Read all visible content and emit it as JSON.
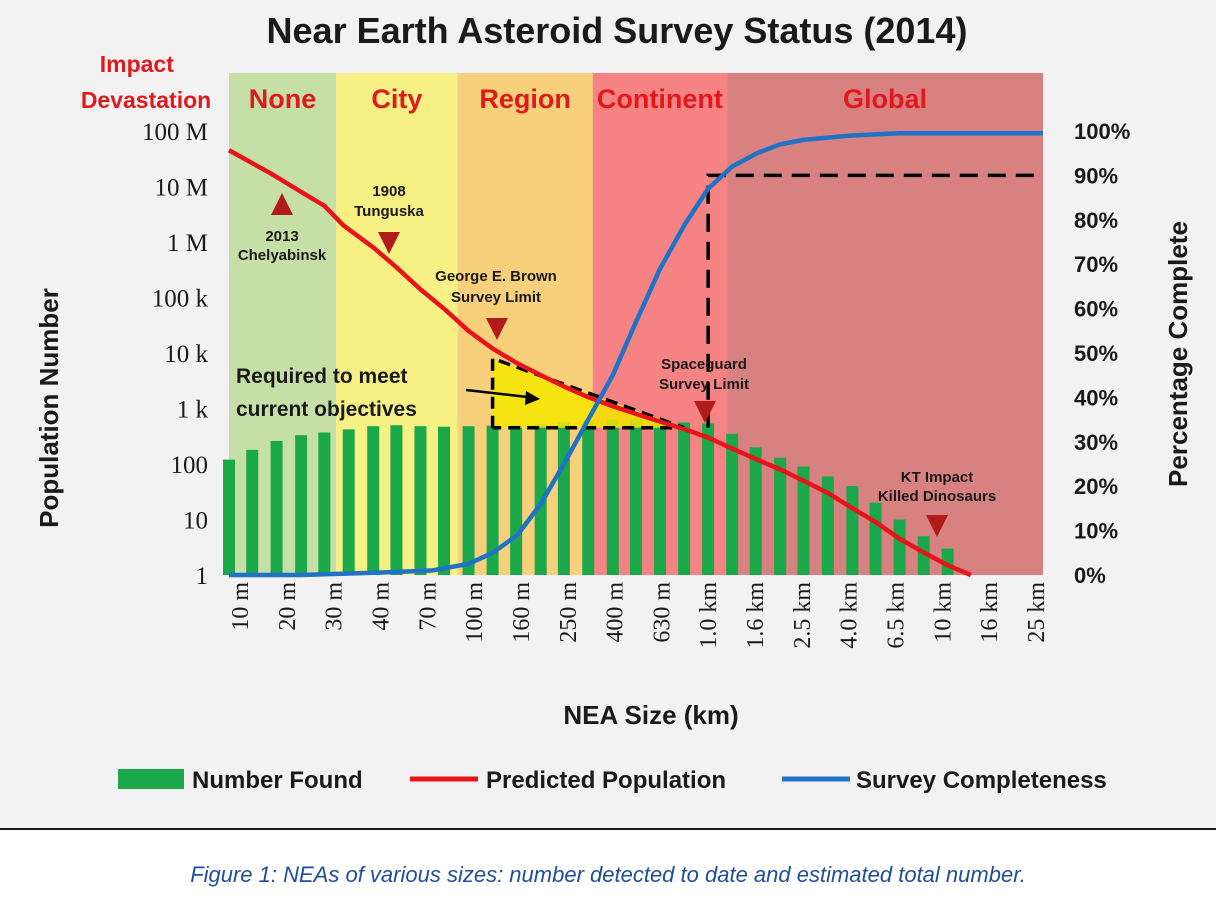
{
  "caption": "Figure 1: NEAs of various sizes: number detected to date and estimated total number.",
  "chart_data": {
    "type": "bar",
    "title": "Near Earth Asteroid Survey Status (2014)",
    "xlabel": "NEA Size (km)",
    "ylabel": "Population Number",
    "y2label": "Percentage Complete",
    "yscale": "log",
    "ylim": [
      1,
      100000000
    ],
    "y2lim": [
      0,
      100
    ],
    "yticks": [
      "1",
      "10",
      "100",
      "1 k",
      "10 k",
      "100 k",
      "1 M",
      "10 M",
      "100 M"
    ],
    "y2ticks": [
      "0%",
      "10%",
      "20%",
      "30%",
      "40%",
      "50%",
      "60%",
      "70%",
      "80%",
      "90%",
      "100%"
    ],
    "categories": [
      "10 m",
      "20 m",
      "30 m",
      "40 m",
      "70 m",
      "100 m",
      "160 m",
      "250 m",
      "400 m",
      "630 m",
      "1.0 km",
      "1.6 km",
      "2.5 km",
      "4.0 km",
      "6.5 km",
      "10 km",
      "16 km",
      "25 km"
    ],
    "impact_label": "Impact Devastation",
    "zones": [
      {
        "label": "None",
        "from": 10,
        "to": 28,
        "color": "#c6dfa6"
      },
      {
        "label": "City",
        "from": 28,
        "to": 90,
        "color": "#f7f084"
      },
      {
        "label": "Region",
        "from": 90,
        "to": 330,
        "color": "#f8cf7a"
      },
      {
        "label": "Continent",
        "from": 330,
        "to": 1200,
        "color": "#f58383"
      },
      {
        "label": "Global",
        "from": 1200,
        "to": 35000,
        "color": "#d88181"
      }
    ],
    "series": [
      {
        "name": "Number Found",
        "color": "#1aa84a",
        "kind": "bar",
        "x": [
          10,
          12.5,
          15.8,
          20,
          25,
          31.6,
          40,
          50,
          63,
          79,
          100,
          126,
          158,
          200,
          250,
          316,
          400,
          500,
          630,
          794,
          1000,
          1260,
          1580,
          2000,
          2500,
          3160,
          4000,
          5000,
          6300,
          7940,
          10000
        ],
        "values": [
          120,
          180,
          260,
          330,
          370,
          420,
          480,
          500,
          480,
          470,
          480,
          490,
          500,
          520,
          560,
          600,
          640,
          640,
          600,
          560,
          540,
          350,
          200,
          130,
          90,
          60,
          40,
          20,
          10,
          5,
          3
        ]
      },
      {
        "name": "Predicted Population",
        "color": "#e8141c",
        "kind": "line",
        "x": [
          10,
          15,
          20,
          25,
          30,
          40,
          50,
          63,
          80,
          100,
          126,
          160,
          200,
          250,
          316,
          400,
          500,
          630,
          800,
          1000,
          1260,
          1600,
          2000,
          2500,
          3160,
          4000,
          5000,
          6300,
          8000,
          10000,
          12500
        ],
        "values": [
          45000000,
          17000000,
          8000000,
          4500000,
          2000000,
          800000,
          350000,
          140000,
          60000,
          25000,
          12000,
          6500,
          4000,
          2500,
          1600,
          1100,
          800,
          580,
          420,
          300,
          190,
          120,
          80,
          50,
          30,
          16,
          9,
          4.5,
          2.5,
          1.5,
          1
        ]
      },
      {
        "name": "Survey Completeness",
        "color": "#1f72c6",
        "kind": "line",
        "axis": "right",
        "x": [
          10,
          20,
          40,
          70,
          100,
          126,
          160,
          200,
          250,
          316,
          400,
          500,
          630,
          800,
          1000,
          1260,
          1600,
          2000,
          2500,
          3160,
          4000,
          6300,
          10000,
          16000,
          25000
        ],
        "values": [
          0,
          0,
          0.5,
          1,
          2.5,
          5,
          9,
          16,
          25,
          35,
          45,
          57,
          69,
          79,
          87,
          92,
          95,
          97,
          98,
          98.5,
          99,
          99.5,
          99.5,
          99.5,
          99.5
        ]
      }
    ],
    "annotations": {
      "chelyabinsk": "2013 Chelyabinsk",
      "tunguska": "1908 Tunguska",
      "brown": "George E. Brown Survey Limit",
      "spaceguard": "Spaceguard Survey Limit",
      "kt": "KT Impact Killed Dinosaurs",
      "required": "Required to meet current objectives"
    },
    "targets": {
      "spaceguard_x": 1000,
      "spaceguard_pct": 90
    },
    "legend_position": "bottom"
  }
}
